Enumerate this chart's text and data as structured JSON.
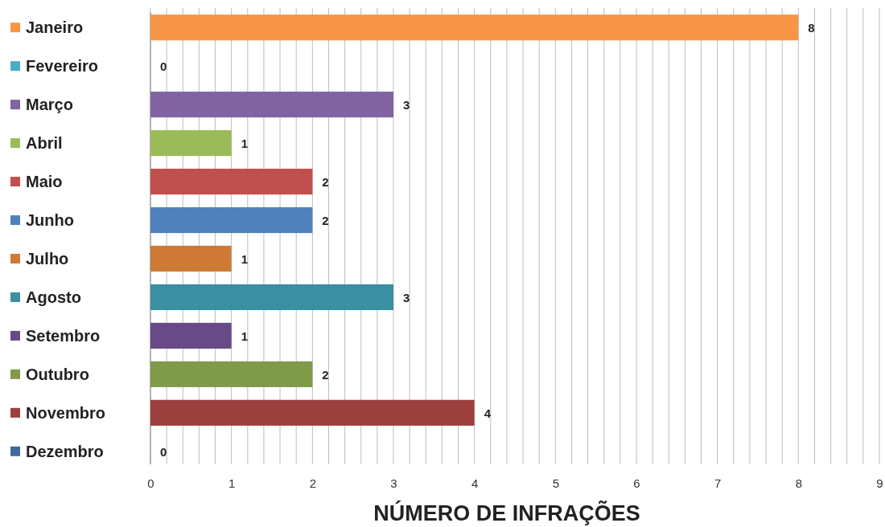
{
  "chart_data": {
    "type": "bar",
    "orientation": "horizontal",
    "xlabel": "NÚMERO DE INFRAÇÕES",
    "categories": [
      "Janeiro",
      "Fevereiro",
      "Março",
      "Abril",
      "Maio",
      "Junho",
      "Julho",
      "Agosto",
      "Setembro",
      "Outubro",
      "Novembro",
      "Dezembro"
    ],
    "values": [
      8,
      0,
      3,
      1,
      2,
      2,
      1,
      3,
      1,
      2,
      4,
      0
    ],
    "colors": [
      "#f79646",
      "#4bacc6",
      "#8064a2",
      "#9bbb59",
      "#c0504d",
      "#4f81bd",
      "#cc7a35",
      "#3b8fa3",
      "#664b86",
      "#7f9a48",
      "#9c403d",
      "#3d6a9f"
    ],
    "xlim": [
      0,
      9
    ],
    "xticks": [
      0,
      {
        "value": 0.2,
        "label": null
      },
      {
        "value": 0.4,
        "label": null
      },
      {
        "value": 0.6,
        "label": null
      },
      {
        "value": 0.8,
        "label": null
      },
      1,
      {
        "value": 1.2,
        "label": null
      },
      {
        "value": 1.4,
        "label": null
      },
      {
        "value": 1.6,
        "label": null
      },
      {
        "value": 1.8,
        "label": null
      },
      2,
      {
        "value": 2.2,
        "label": null
      },
      {
        "value": 2.4,
        "label": null
      },
      {
        "value": 2.6,
        "label": null
      },
      {
        "value": 2.8,
        "label": null
      },
      3,
      {
        "value": 3.2,
        "label": null
      },
      {
        "value": 3.4,
        "label": null
      },
      {
        "value": 3.6,
        "label": null
      },
      {
        "value": 3.8,
        "label": null
      },
      4,
      {
        "value": 4.2,
        "label": null
      },
      {
        "value": 4.4,
        "label": null
      },
      {
        "value": 4.6,
        "label": null
      },
      {
        "value": 4.8,
        "label": null
      },
      5,
      {
        "value": 5.2,
        "label": null
      },
      {
        "value": 5.4,
        "label": null
      },
      {
        "value": 5.6,
        "label": null
      },
      {
        "value": 5.8,
        "label": null
      },
      6,
      {
        "value": 6.2,
        "label": null
      },
      {
        "value": 6.4,
        "label": null
      },
      {
        "value": 6.6,
        "label": null
      },
      {
        "value": 6.8,
        "label": null
      },
      7,
      {
        "value": 7.2,
        "label": null
      },
      {
        "value": 7.4,
        "label": null
      },
      {
        "value": 7.6,
        "label": null
      },
      {
        "value": 7.8,
        "label": null
      },
      8,
      {
        "value": 8.2,
        "label": null
      },
      {
        "value": 8.4,
        "label": null
      },
      {
        "value": 8.6,
        "label": null
      },
      {
        "value": 8.8,
        "label": null
      },
      9
    ],
    "grid": "x",
    "data_labels": true
  }
}
